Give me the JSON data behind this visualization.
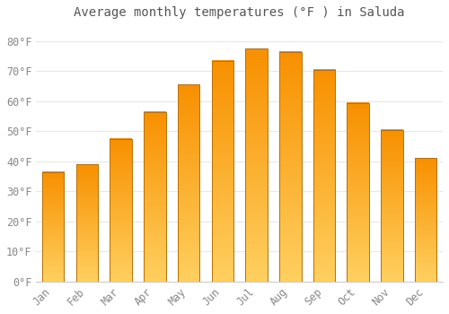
{
  "title": "Average monthly temperatures (°F ) in Saluda",
  "months": [
    "Jan",
    "Feb",
    "Mar",
    "Apr",
    "May",
    "Jun",
    "Jul",
    "Aug",
    "Sep",
    "Oct",
    "Nov",
    "Dec"
  ],
  "values": [
    36.5,
    39.0,
    47.5,
    56.5,
    65.5,
    73.5,
    77.5,
    76.5,
    70.5,
    59.5,
    50.5,
    41.0
  ],
  "bar_color": "#FFA520",
  "bar_edge_color": "#CC8000",
  "background_color": "#ffffff",
  "plot_bg_color": "#ffffff",
  "grid_color": "#e8e8e8",
  "text_color": "#888888",
  "ylim": [
    0,
    85
  ],
  "yticks": [
    0,
    10,
    20,
    30,
    40,
    50,
    60,
    70,
    80
  ],
  "title_fontsize": 10,
  "tick_fontsize": 8.5
}
